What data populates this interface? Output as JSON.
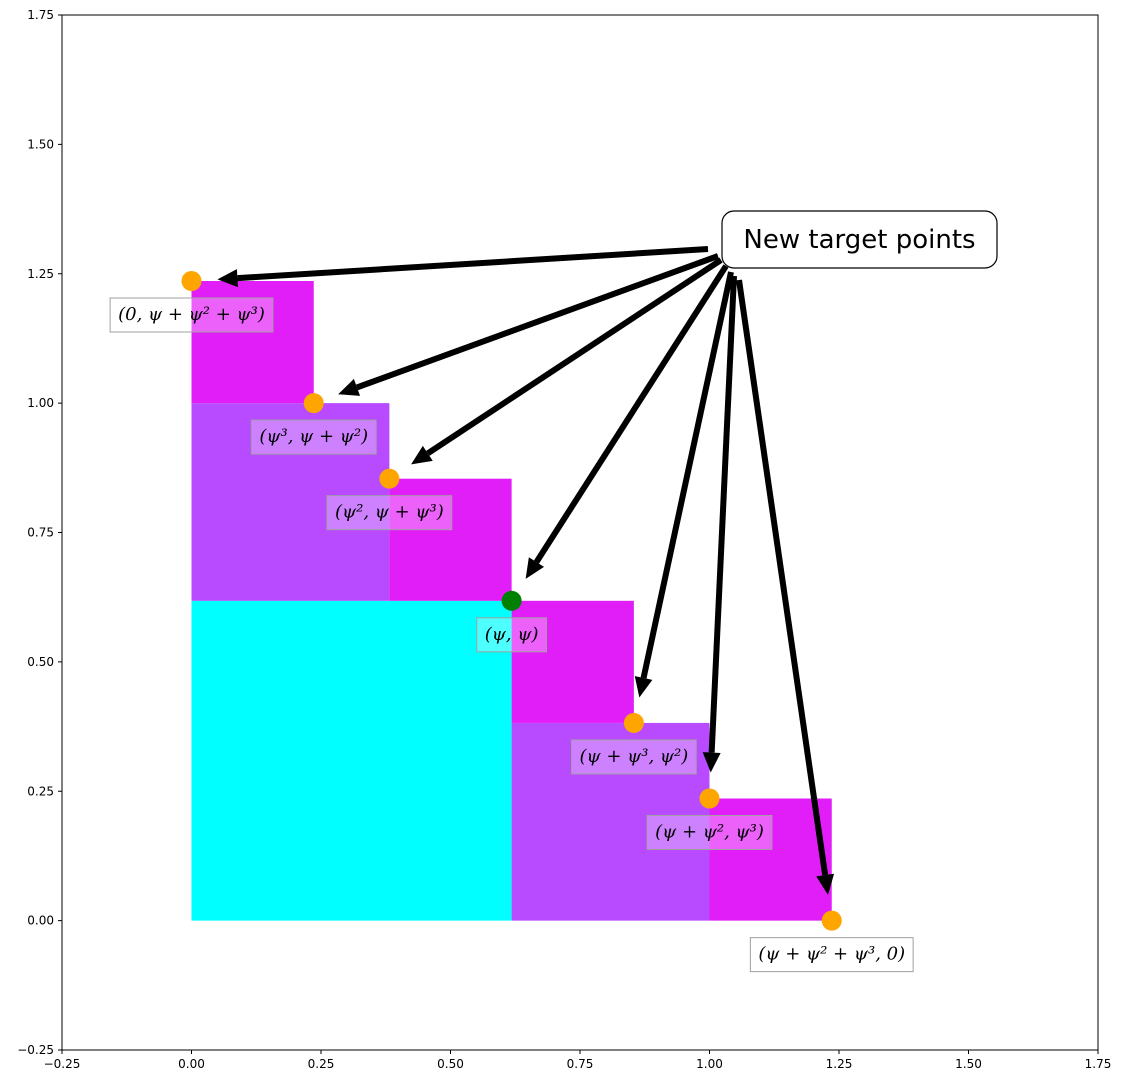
{
  "chart_data": {
    "type": "scatter",
    "title": "",
    "xlabel": "",
    "ylabel": "",
    "xlim": [
      -0.25,
      1.75
    ],
    "ylim": [
      -0.25,
      1.75
    ],
    "grid": false,
    "x_ticks": [
      "−0.25",
      "0.00",
      "0.25",
      "0.50",
      "0.75",
      "1.00",
      "1.25",
      "1.50",
      "1.75"
    ],
    "y_ticks": [
      "−0.25",
      "0.00",
      "0.25",
      "0.50",
      "0.75",
      "1.00",
      "1.25",
      "1.50",
      "1.75"
    ],
    "x_tick_values": [
      -0.25,
      0,
      0.25,
      0.5,
      0.75,
      1.0,
      1.25,
      1.5,
      1.75
    ],
    "y_tick_values": [
      -0.25,
      0,
      0.25,
      0.5,
      0.75,
      1.0,
      1.25,
      1.5,
      1.75
    ],
    "rectangles": [
      {
        "x": 0,
        "y": 0,
        "w": 0.618,
        "h": 0.618,
        "color": "#00ffff"
      },
      {
        "x": 0,
        "y": 0.618,
        "w": 0.382,
        "h": 0.382,
        "color": "#b84bff"
      },
      {
        "x": 0.618,
        "y": 0,
        "w": 0.382,
        "h": 0.382,
        "color": "#b84bff"
      },
      {
        "x": 0,
        "y": 1.0,
        "w": 0.236,
        "h": 0.236,
        "color": "#e21ef8"
      },
      {
        "x": 0.382,
        "y": 0.618,
        "w": 0.236,
        "h": 0.236,
        "color": "#e21ef8"
      },
      {
        "x": 0.618,
        "y": 0.382,
        "w": 0.236,
        "h": 0.236,
        "color": "#e21ef8"
      },
      {
        "x": 1.0,
        "y": 0,
        "w": 0.236,
        "h": 0.236,
        "color": "#e21ef8"
      }
    ],
    "points": [
      {
        "x": 0,
        "y": 1.236,
        "color": "#ffa500",
        "label": "(0, ψ + ψ² + ψ³)",
        "kind": "new-target"
      },
      {
        "x": 0.236,
        "y": 1.0,
        "color": "#ffa500",
        "label": "(ψ³, ψ + ψ²)",
        "kind": "new-target"
      },
      {
        "x": 0.382,
        "y": 0.854,
        "color": "#ffa500",
        "label": "(ψ², ψ + ψ³)",
        "kind": "new-target"
      },
      {
        "x": 0.618,
        "y": 0.618,
        "color": "#008000",
        "label": "(ψ, ψ)",
        "kind": "original"
      },
      {
        "x": 0.854,
        "y": 0.382,
        "color": "#ffa500",
        "label": "(ψ + ψ³, ψ²)",
        "kind": "new-target"
      },
      {
        "x": 1.0,
        "y": 0.236,
        "color": "#ffa500",
        "label": "(ψ + ψ², ψ³)",
        "kind": "new-target"
      },
      {
        "x": 1.236,
        "y": 0,
        "color": "#ffa500",
        "label": "(ψ + ψ² + ψ³, 0)",
        "kind": "new-target"
      }
    ],
    "annotation": {
      "text": "New target points",
      "arrow_color": "#000000"
    }
  }
}
